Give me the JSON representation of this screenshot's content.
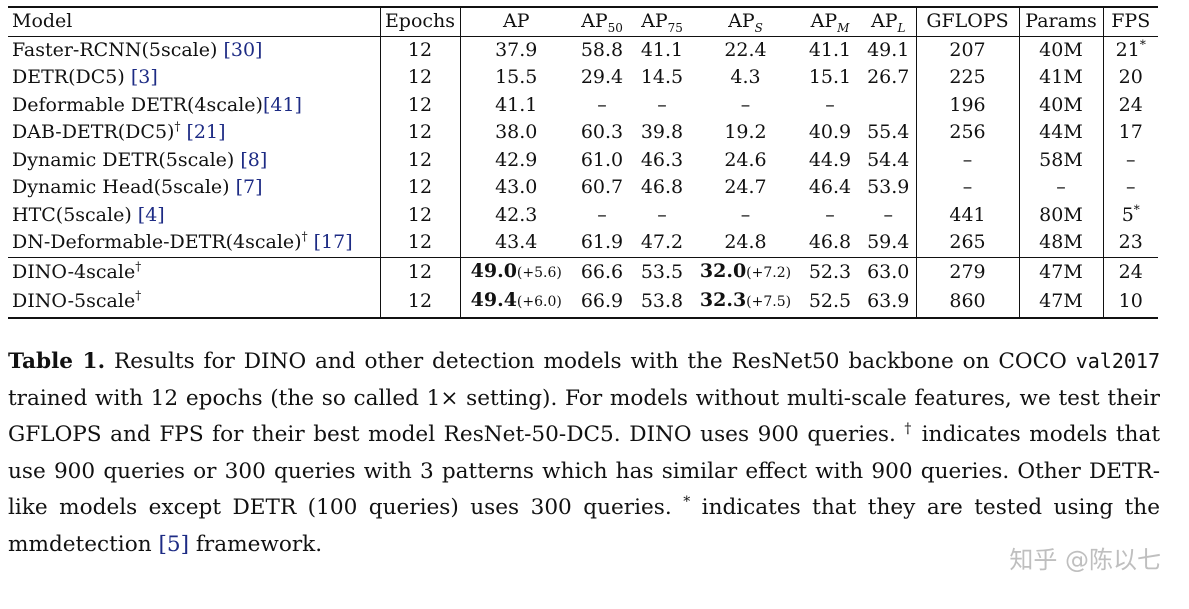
{
  "table": {
    "headers": {
      "model": "Model",
      "epochs": "Epochs",
      "ap": "AP",
      "ap50": {
        "base": "AP",
        "sub": "50"
      },
      "ap75": {
        "base": "AP",
        "sub": "75"
      },
      "aps": {
        "base": "AP",
        "sub": "S"
      },
      "apm": {
        "base": "AP",
        "sub": "M"
      },
      "apl": {
        "base": "AP",
        "sub": "L"
      },
      "gflops": "GFLOPS",
      "params": "Params",
      "fps": "FPS"
    },
    "rows": [
      {
        "model": "Faster-RCNN(5scale) ",
        "mark": "",
        "ref": "[30]",
        "epochs": "12",
        "ap": "37.9",
        "ap50": "58.8",
        "ap75": "41.1",
        "aps": "22.4",
        "apm": "41.1",
        "apl": "49.1",
        "gflops": "207",
        "params": "40M",
        "fps": "21",
        "fps_mark": "*"
      },
      {
        "model": "DETR(DC5) ",
        "mark": "",
        "ref": "[3]",
        "epochs": "12",
        "ap": "15.5",
        "ap50": "29.4",
        "ap75": "14.5",
        "aps": "4.3",
        "apm": "15.1",
        "apl": "26.7",
        "gflops": "225",
        "params": "41M",
        "fps": "20",
        "fps_mark": ""
      },
      {
        "model": "Deformable DETR(4scale)",
        "mark": "",
        "ref": "[41]",
        "epochs": "12",
        "ap": "41.1",
        "ap50": "–",
        "ap75": "–",
        "aps": "–",
        "apm": "–",
        "apl": "",
        "gflops": "196",
        "params": "40M",
        "fps": "24",
        "fps_mark": ""
      },
      {
        "model": "DAB-DETR(DC5)",
        "mark": "†",
        "ref": " [21]",
        "epochs": "12",
        "ap": "38.0",
        "ap50": "60.3",
        "ap75": "39.8",
        "aps": "19.2",
        "apm": "40.9",
        "apl": "55.4",
        "gflops": "256",
        "params": "44M",
        "fps": "17",
        "fps_mark": ""
      },
      {
        "model": "Dynamic DETR(5scale) ",
        "mark": "",
        "ref": "[8]",
        "epochs": "12",
        "ap": "42.9",
        "ap50": "61.0",
        "ap75": "46.3",
        "aps": "24.6",
        "apm": "44.9",
        "apl": "54.4",
        "gflops": "–",
        "params": "58M",
        "fps": "–",
        "fps_mark": ""
      },
      {
        "model": "Dynamic Head(5scale) ",
        "mark": "",
        "ref": "[7]",
        "epochs": "12",
        "ap": "43.0",
        "ap50": "60.7",
        "ap75": "46.8",
        "aps": "24.7",
        "apm": "46.4",
        "apl": "53.9",
        "gflops": "–",
        "params": "–",
        "fps": "–",
        "fps_mark": ""
      },
      {
        "model": "HTC(5scale) ",
        "mark": "",
        "ref": "[4]",
        "epochs": "12",
        "ap": "42.3",
        "ap50": "–",
        "ap75": "–",
        "aps": "–",
        "apm": "–",
        "apl": "–",
        "gflops": "441",
        "params": "80M",
        "fps": "5",
        "fps_mark": "*"
      },
      {
        "model": "DN-Deformable-DETR(4scale)",
        "mark": "†",
        "ref": " [17]",
        "epochs": "12",
        "ap": "43.4",
        "ap50": "61.9",
        "ap75": "47.2",
        "aps": "24.8",
        "apm": "46.8",
        "apl": "59.4",
        "gflops": "265",
        "params": "48M",
        "fps": "23",
        "fps_mark": ""
      }
    ],
    "dino_rows": [
      {
        "model": "DINO-4scale",
        "mark": "†",
        "epochs": "12",
        "ap": "49.0",
        "ap_gain": "(+5.6)",
        "ap50": "66.6",
        "ap75": "53.5",
        "aps": "32.0",
        "aps_gain": "(+7.2)",
        "apm": "52.3",
        "apl": "63.0",
        "gflops": "279",
        "params": "47M",
        "fps": "24"
      },
      {
        "model": "DINO-5scale",
        "mark": "†",
        "epochs": "12",
        "ap": "49.4",
        "ap_gain": "(+6.0)",
        "ap50": "66.9",
        "ap75": "53.8",
        "aps": "32.3",
        "aps_gain": "(+7.5)",
        "apm": "52.5",
        "apl": "63.9",
        "gflops": "860",
        "params": "47M",
        "fps": "10"
      }
    ]
  },
  "caption": {
    "label": "Table 1.",
    "text_a": " Results for DINO and other detection models with the ResNet50 backbone on COCO ",
    "mono": "val2017",
    "text_b": " trained with 12 epochs (the so called 1× setting). For models without multi-scale features, we test their GFLOPS and FPS for their best model ResNet-50-DC5. DINO uses 900 queries. ",
    "dagger": "†",
    "text_c": " indicates models that use 900 queries or 300 queries with 3 patterns which has similar effect with 900 queries. Other DETR-like models except DETR (100 queries) uses 300 queries. ",
    "star": "*",
    "text_d": " indicates that they are tested using the mmdetection ",
    "ref": "[5]",
    "text_e": " framework."
  },
  "watermark": "知乎 @陈以七"
}
